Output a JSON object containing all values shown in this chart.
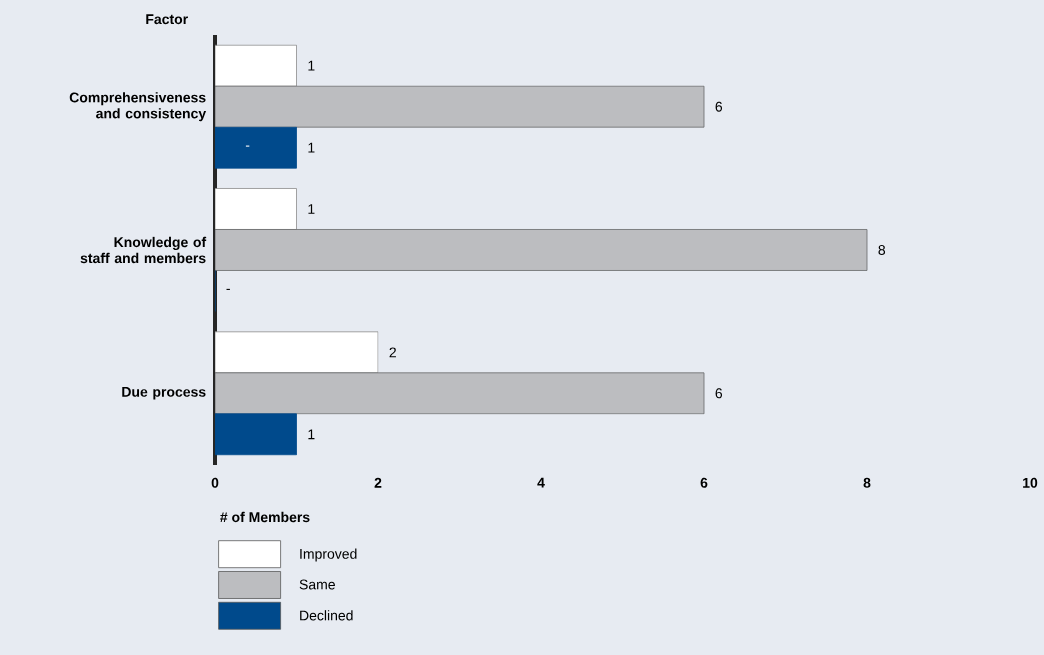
{
  "chart_data": {
    "type": "bar",
    "orientation": "horizontal",
    "ylabel": "Factor",
    "xlabel": "# of Members",
    "categories": [
      "Comprehensiveness and consistency",
      "Knowledge of staff and members",
      "Due process"
    ],
    "series": [
      {
        "name": "Improved",
        "color": "#ffffff",
        "values": [
          1,
          1,
          2
        ],
        "value_labels": [
          "1",
          "1",
          "2"
        ]
      },
      {
        "name": "Same",
        "color": "#bcbdc0",
        "values": [
          6,
          8,
          6
        ],
        "value_labels": [
          "6",
          "8",
          "6"
        ]
      },
      {
        "name": "Declined",
        "color": "#004a8c",
        "values": [
          1,
          0,
          1
        ],
        "value_labels": [
          "1",
          "-",
          "1"
        ]
      }
    ],
    "xlim": [
      0,
      10
    ],
    "xticks": [
      0,
      2,
      4,
      6,
      8,
      10
    ],
    "legend": "bottom left",
    "grid": false,
    "annotations": [
      "-"
    ]
  }
}
